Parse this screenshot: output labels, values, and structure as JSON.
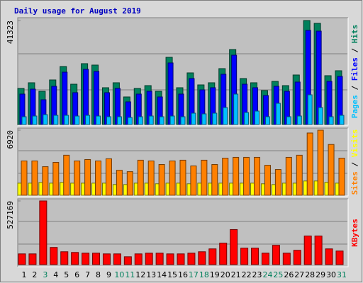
{
  "chart_data": [
    {
      "type": "bar",
      "title": "Daily usage for August 2019",
      "title_color": "#0000c0",
      "ylim": [
        0,
        41323
      ],
      "yticks": [
        41323
      ],
      "legend_separator": " / ",
      "series": [
        {
          "name": "Hits",
          "color": "#00805c",
          "values": [
            14340,
            16590,
            13210,
            17710,
            23050,
            16020,
            24180,
            23620,
            14620,
            16590,
            10960,
            14340,
            15460,
            13210,
            26710,
            14620,
            20520,
            15740,
            16590,
            22210,
            29800,
            18270,
            16590,
            13490,
            17150,
            15460,
            19680,
            41323,
            40200,
            19400,
            21370
          ]
        },
        {
          "name": "Files",
          "color": "#0000ff",
          "values": [
            12090,
            14060,
            9840,
            15180,
            20800,
            12650,
            21930,
            21090,
            12650,
            14340,
            9000,
            12090,
            13210,
            10960,
            24460,
            12090,
            18270,
            13770,
            14620,
            19960,
            27550,
            16020,
            14620,
            11520,
            15180,
            13210,
            16870,
            37400,
            37100,
            17150,
            19110
          ]
        },
        {
          "name": "Pages",
          "color": "#00c0ff",
          "values": [
            3090,
            3370,
            3930,
            3650,
            3650,
            3370,
            3650,
            3370,
            3090,
            3090,
            2810,
            3090,
            3370,
            3090,
            3370,
            3090,
            4500,
            4220,
            4500,
            6740,
            12090,
            4780,
            5340,
            3090,
            8430,
            3090,
            3370,
            11800,
            6740,
            3090,
            3650
          ]
        }
      ]
    },
    {
      "type": "bar",
      "ylim": [
        0,
        6920
      ],
      "yticks": [
        6920
      ],
      "legend_separator": " / ",
      "series": [
        {
          "name": "Visits",
          "color": "#ffff00",
          "values": [
            1290,
            1290,
            1360,
            1290,
            1360,
            1290,
            1290,
            1290,
            1290,
            1140,
            1140,
            1290,
            1290,
            1220,
            1290,
            1290,
            1220,
            1290,
            1290,
            1290,
            1290,
            1290,
            1290,
            1220,
            1140,
            1290,
            1290,
            1520,
            1520,
            1370,
            1290
          ]
        },
        {
          "name": "Sites",
          "color": "#ff8000",
          "values": [
            3650,
            3650,
            3040,
            3500,
            4260,
            3650,
            3800,
            3650,
            3880,
            2660,
            2510,
            3730,
            3650,
            3270,
            3650,
            3730,
            3120,
            3730,
            3270,
            3950,
            4030,
            4030,
            4030,
            3190,
            2740,
            4030,
            4260,
            6620,
            6920,
            5400,
            3950
          ]
        }
      ]
    },
    {
      "type": "bar",
      "ylim": [
        0,
        527169
      ],
      "yticks": [
        527169
      ],
      "categories": [
        "1",
        "2",
        "3",
        "4",
        "5",
        "6",
        "7",
        "8",
        "9",
        "10",
        "11",
        "12",
        "13",
        "14",
        "15",
        "16",
        "17",
        "18",
        "19",
        "20",
        "21",
        "22",
        "23",
        "24",
        "25",
        "26",
        "27",
        "28",
        "29",
        "30",
        "31"
      ],
      "category_colors": [
        "#000000",
        "#000000",
        "#00805c",
        "#000000",
        "#000000",
        "#000000",
        "#000000",
        "#000000",
        "#000000",
        "#00805c",
        "#00805c",
        "#000000",
        "#000000",
        "#000000",
        "#000000",
        "#000000",
        "#00805c",
        "#00805c",
        "#000000",
        "#000000",
        "#000000",
        "#000000",
        "#000000",
        "#00805c",
        "#00805c",
        "#000000",
        "#000000",
        "#000000",
        "#000000",
        "#000000",
        "#00805c"
      ],
      "series": [
        {
          "name": "KBytes",
          "color": "#ff0000",
          "values": [
            88800,
            88800,
            527169,
            142200,
            106600,
            100700,
            94800,
            94800,
            88800,
            88800,
            65200,
            88800,
            94800,
            94800,
            88800,
            88800,
            94800,
            106600,
            130300,
            177700,
            290200,
            136200,
            136200,
            94800,
            159900,
            94800,
            118500,
            236900,
            236900,
            130300,
            112500
          ]
        }
      ]
    }
  ]
}
